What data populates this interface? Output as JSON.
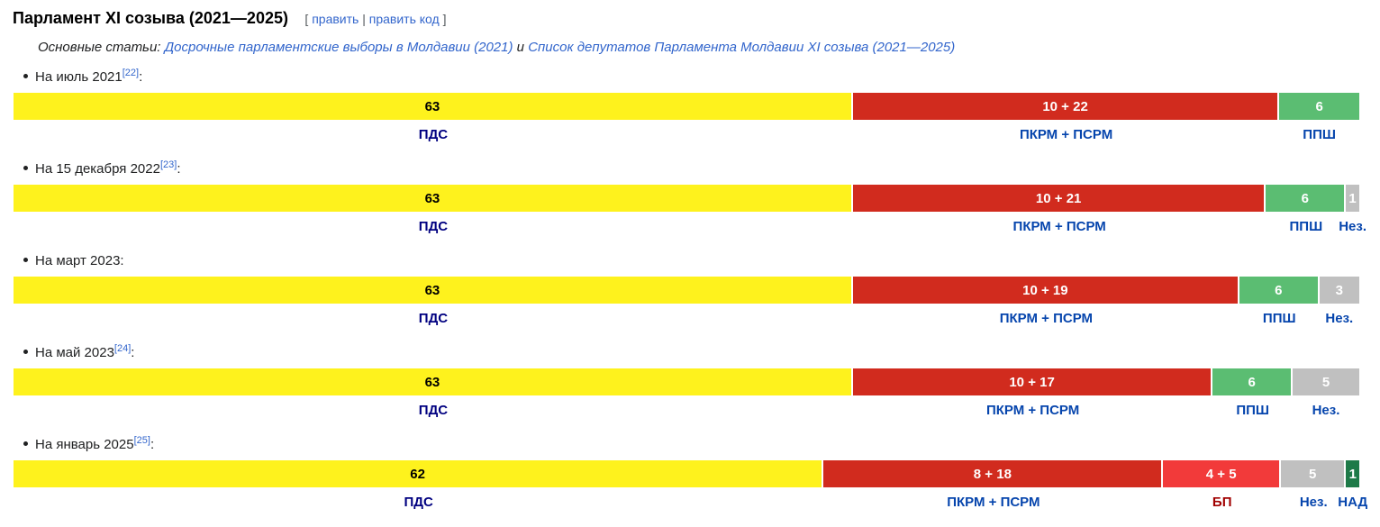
{
  "heading": {
    "title": "Парламент XI созыва (2021—2025)",
    "edit_open": "[ ",
    "edit_link": "править",
    "edit_sep": " | ",
    "edit_code_link": "править код",
    "edit_close": " ]"
  },
  "hatnote": {
    "prefix": "Основные статьи: ",
    "link1": "Досрочные парламентские выборы в Молдавии (2021)",
    "conj": " и ",
    "link2": "Список депутатов Парламента Молдавии XI созыва (2021—2025)"
  },
  "sections": [
    {
      "label": "На июль 2021",
      "ref": "[22]",
      "segments": [
        {
          "text": "63",
          "value": 63,
          "color": "#fef21d",
          "text_color": "#000000",
          "party": "ПДС",
          "party_color": "#000080"
        },
        {
          "text": "10 + 22",
          "value": 32,
          "color": "#d12b1e",
          "text_color": "#ffffff",
          "party": "ПКРМ + ПСРМ",
          "party_color": "#0645ad"
        },
        {
          "text": "6",
          "value": 6,
          "color": "#5bbd72",
          "text_color": "#ffffff",
          "party": "ППШ",
          "party_color": "#0645ad"
        }
      ]
    },
    {
      "label": "На 15 декабря 2022",
      "ref": "[23]",
      "segments": [
        {
          "text": "63",
          "value": 63,
          "color": "#fef21d",
          "text_color": "#000000",
          "party": "ПДС",
          "party_color": "#000080"
        },
        {
          "text": "10 + 21",
          "value": 31,
          "color": "#d12b1e",
          "text_color": "#ffffff",
          "party": "ПКРМ + ПСРМ",
          "party_color": "#0645ad"
        },
        {
          "text": "6",
          "value": 6,
          "color": "#5bbd72",
          "text_color": "#ffffff",
          "party": "ППШ",
          "party_color": "#0645ad"
        },
        {
          "text": "1",
          "value": 1,
          "color": "#c0c0c0",
          "text_color": "#ffffff",
          "party": "Нез.",
          "party_color": "#0645ad"
        }
      ]
    },
    {
      "label": "На март 2023",
      "ref": "",
      "segments": [
        {
          "text": "63",
          "value": 63,
          "color": "#fef21d",
          "text_color": "#000000",
          "party": "ПДС",
          "party_color": "#000080"
        },
        {
          "text": "10 + 19",
          "value": 29,
          "color": "#d12b1e",
          "text_color": "#ffffff",
          "party": "ПКРМ + ПСРМ",
          "party_color": "#0645ad"
        },
        {
          "text": "6",
          "value": 6,
          "color": "#5bbd72",
          "text_color": "#ffffff",
          "party": "ППШ",
          "party_color": "#0645ad"
        },
        {
          "text": "3",
          "value": 3,
          "color": "#c0c0c0",
          "text_color": "#ffffff",
          "party": "Нез.",
          "party_color": "#0645ad"
        }
      ]
    },
    {
      "label": "На май 2023",
      "ref": "[24]",
      "segments": [
        {
          "text": "63",
          "value": 63,
          "color": "#fef21d",
          "text_color": "#000000",
          "party": "ПДС",
          "party_color": "#000080"
        },
        {
          "text": "10 + 17",
          "value": 27,
          "color": "#d12b1e",
          "text_color": "#ffffff",
          "party": "ПКРМ + ПСРМ",
          "party_color": "#0645ad"
        },
        {
          "text": "6",
          "value": 6,
          "color": "#5bbd72",
          "text_color": "#ffffff",
          "party": "ППШ",
          "party_color": "#0645ad"
        },
        {
          "text": "5",
          "value": 5,
          "color": "#c0c0c0",
          "text_color": "#ffffff",
          "party": "Нез.",
          "party_color": "#0645ad"
        }
      ]
    },
    {
      "label": "На январь 2025",
      "ref": "[25]",
      "segments": [
        {
          "text": "62",
          "value": 62,
          "color": "#fef21d",
          "text_color": "#000000",
          "party": "ПДС",
          "party_color": "#000080"
        },
        {
          "text": "8 + 18",
          "value": 26,
          "color": "#d12b1e",
          "text_color": "#ffffff",
          "party": "ПКРМ + ПСРМ",
          "party_color": "#0645ad"
        },
        {
          "text": "4 + 5",
          "value": 9,
          "color": "#f23a3a",
          "text_color": "#ffffff",
          "party": "БП",
          "party_color": "#a10000"
        },
        {
          "text": "5",
          "value": 5,
          "color": "#c0c0c0",
          "text_color": "#ffffff",
          "party": "Нез.",
          "party_color": "#0645ad"
        },
        {
          "text": "1",
          "value": 1,
          "color": "#1e7a48",
          "text_color": "#ffffff",
          "party": "НАД",
          "party_color": "#0645ad"
        }
      ]
    }
  ]
}
